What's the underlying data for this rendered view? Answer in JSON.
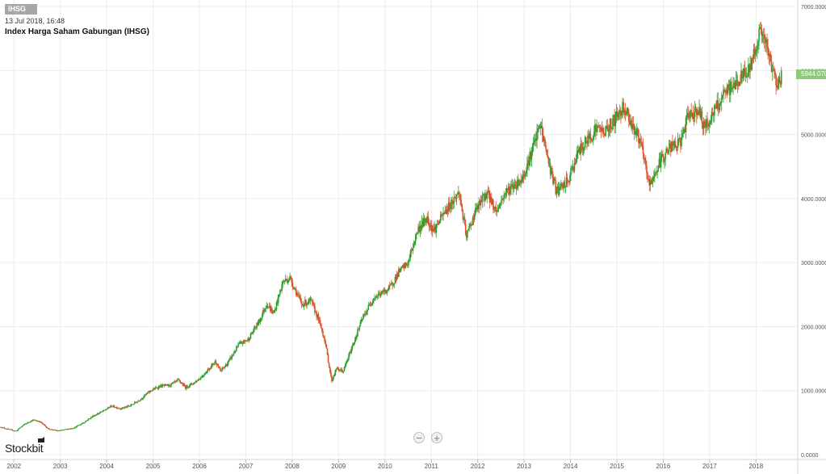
{
  "header": {
    "ticker": "IHSG",
    "timestamp": "13 Jul 2018, 16:48",
    "title": "Index Harga Saham Gabungan (IHSG)"
  },
  "last_price_label": "5944.0700",
  "brand": "Stockbit",
  "zoom": {
    "out_symbol": "−",
    "in_symbol": "+"
  },
  "colors": {
    "up": "#2e9e2e",
    "down": "#d9542b",
    "grid": "#ececec",
    "price_tag": "#8cc97a"
  },
  "chart_data": {
    "type": "candlestick",
    "title": "Index Harga Saham Gabungan (IHSG)",
    "xlabel": "",
    "ylabel": "",
    "x_axis_labels": [
      "2002",
      "2003",
      "2004",
      "2005",
      "2006",
      "2007",
      "2008",
      "2009",
      "2010",
      "2011",
      "2012",
      "2013",
      "2014",
      "2015",
      "2016",
      "2017",
      "2018"
    ],
    "y_axis_labels": [
      "0.0000",
      "1000.0000",
      "2000.0000",
      "3000.0000",
      "4000.0000",
      "5000.0000",
      "6000.0000",
      "7000.0000"
    ],
    "ylim": [
      0,
      7000
    ],
    "xlim": [
      2001.7,
      2018.9
    ],
    "grid": true,
    "last_close": 5944.07,
    "series_points": [
      [
        2001.72,
        430
      ],
      [
        2001.9,
        390
      ],
      [
        2002.05,
        370
      ],
      [
        2002.2,
        460
      ],
      [
        2002.4,
        540
      ],
      [
        2002.55,
        520
      ],
      [
        2002.75,
        400
      ],
      [
        2002.95,
        370
      ],
      [
        2003.1,
        390
      ],
      [
        2003.3,
        420
      ],
      [
        2003.5,
        500
      ],
      [
        2003.7,
        600
      ],
      [
        2003.95,
        690
      ],
      [
        2004.1,
        760
      ],
      [
        2004.3,
        720
      ],
      [
        2004.5,
        760
      ],
      [
        2004.7,
        850
      ],
      [
        2004.95,
        1000
      ],
      [
        2005.15,
        1070
      ],
      [
        2005.35,
        1080
      ],
      [
        2005.55,
        1160
      ],
      [
        2005.7,
        1050
      ],
      [
        2005.9,
        1130
      ],
      [
        2006.05,
        1220
      ],
      [
        2006.35,
        1460
      ],
      [
        2006.45,
        1300
      ],
      [
        2006.6,
        1420
      ],
      [
        2006.85,
        1720
      ],
      [
        2007.05,
        1800
      ],
      [
        2007.3,
        2100
      ],
      [
        2007.45,
        2360
      ],
      [
        2007.6,
        2200
      ],
      [
        2007.8,
        2700
      ],
      [
        2007.95,
        2760
      ],
      [
        2008.05,
        2600
      ],
      [
        2008.2,
        2350
      ],
      [
        2008.4,
        2400
      ],
      [
        2008.55,
        2150
      ],
      [
        2008.7,
        1800
      ],
      [
        2008.85,
        1150
      ],
      [
        2008.95,
        1340
      ],
      [
        2009.1,
        1300
      ],
      [
        2009.3,
        1700
      ],
      [
        2009.5,
        2100
      ],
      [
        2009.75,
        2450
      ],
      [
        2009.95,
        2530
      ],
      [
        2010.1,
        2600
      ],
      [
        2010.3,
        2850
      ],
      [
        2010.5,
        3000
      ],
      [
        2010.7,
        3500
      ],
      [
        2010.9,
        3700
      ],
      [
        2011.05,
        3500
      ],
      [
        2011.3,
        3800
      ],
      [
        2011.6,
        4100
      ],
      [
        2011.75,
        3400
      ],
      [
        2011.95,
        3800
      ],
      [
        2012.2,
        4100
      ],
      [
        2012.4,
        3800
      ],
      [
        2012.6,
        4100
      ],
      [
        2012.95,
        4300
      ],
      [
        2013.15,
        4700
      ],
      [
        2013.35,
        5150
      ],
      [
        2013.55,
        4500
      ],
      [
        2013.7,
        4100
      ],
      [
        2013.95,
        4270
      ],
      [
        2014.15,
        4700
      ],
      [
        2014.35,
        4900
      ],
      [
        2014.55,
        5100
      ],
      [
        2014.75,
        5050
      ],
      [
        2014.95,
        5230
      ],
      [
        2015.15,
        5450
      ],
      [
        2015.3,
        5200
      ],
      [
        2015.5,
        4900
      ],
      [
        2015.7,
        4200
      ],
      [
        2015.95,
        4600
      ],
      [
        2016.15,
        4800
      ],
      [
        2016.35,
        4850
      ],
      [
        2016.55,
        5300
      ],
      [
        2016.75,
        5400
      ],
      [
        2016.9,
        5100
      ],
      [
        2017.05,
        5300
      ],
      [
        2017.35,
        5650
      ],
      [
        2017.6,
        5830
      ],
      [
        2017.85,
        6000
      ],
      [
        2018.1,
        6650
      ],
      [
        2018.25,
        6300
      ],
      [
        2018.4,
        5900
      ],
      [
        2018.5,
        5800
      ],
      [
        2018.55,
        5944
      ]
    ]
  }
}
